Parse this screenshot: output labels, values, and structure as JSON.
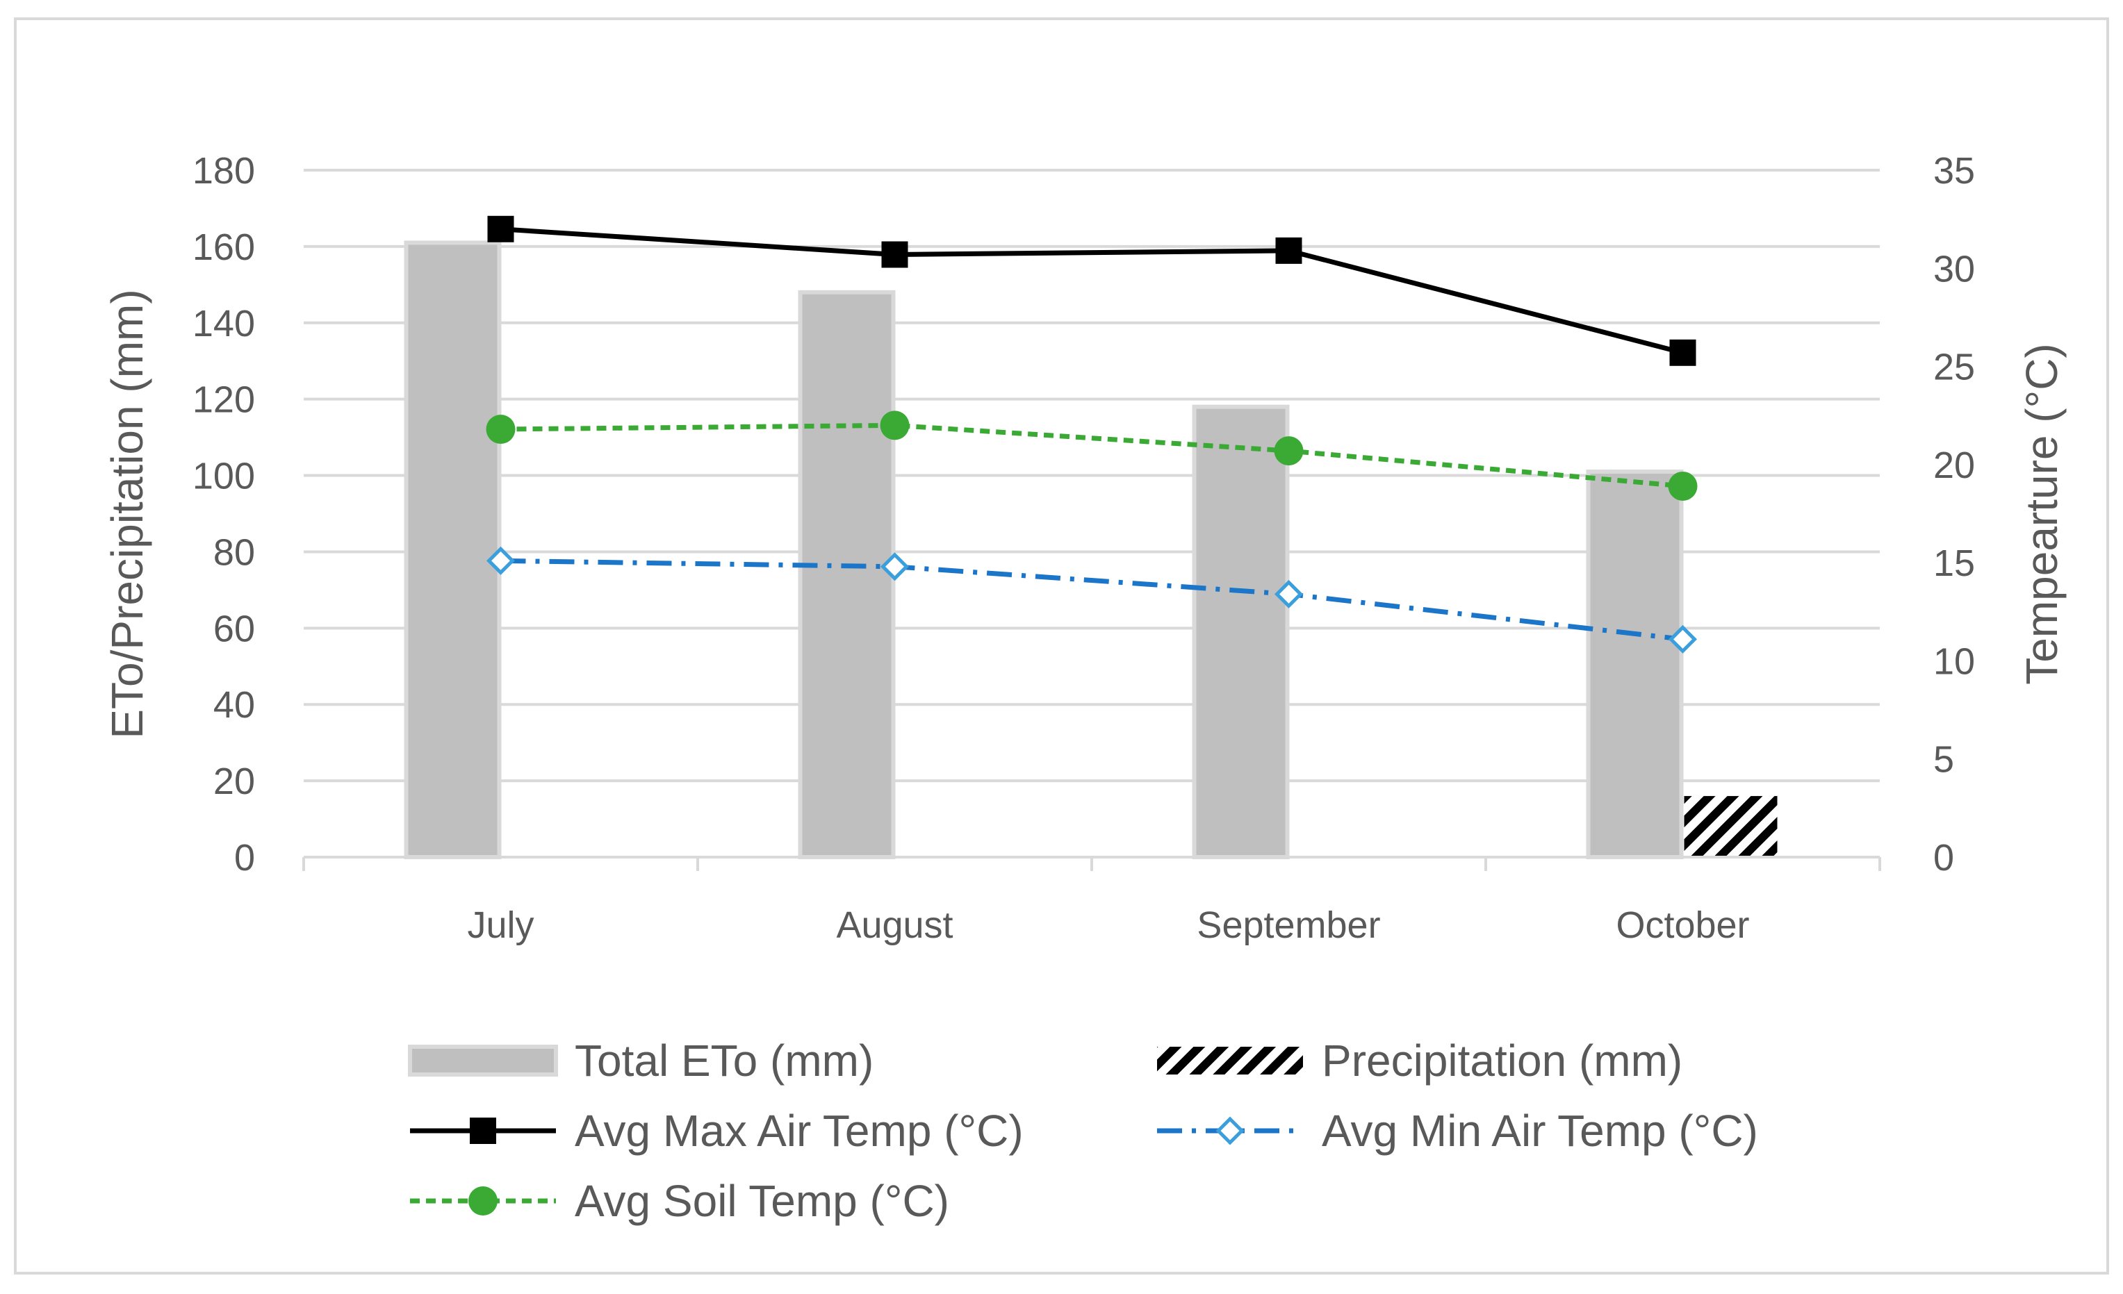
{
  "chart_data": {
    "type": "bar",
    "categories": [
      "July",
      "August",
      "September",
      "October"
    ],
    "primary_axis": {
      "label": "ETo/Precipitation (mm)",
      "ylim": [
        0,
        180
      ],
      "ticks": [
        0,
        20,
        40,
        60,
        80,
        100,
        120,
        140,
        160,
        180
      ]
    },
    "secondary_axis": {
      "label": "Tempearture (°C)",
      "ylim": [
        0,
        35
      ],
      "ticks": [
        0,
        5,
        10,
        15,
        20,
        25,
        30,
        35
      ]
    },
    "grid": true,
    "legend_position": "bottom",
    "series": [
      {
        "key": "eto",
        "name": "Total ETo (mm)",
        "type": "bar",
        "axis": "primary",
        "color": "#bfbfbf",
        "values": [
          161,
          148,
          118,
          101
        ]
      },
      {
        "key": "precip",
        "name": "Precipitation (mm)",
        "type": "bar",
        "axis": "primary",
        "pattern": "diagonal-stripes",
        "color": "#000000",
        "values": [
          0,
          0,
          0,
          16
        ]
      },
      {
        "key": "max",
        "name": "Avg Max Air Temp (°C)",
        "type": "line",
        "axis": "secondary",
        "color": "#000000",
        "marker": "square",
        "line_style": "solid",
        "values": [
          32.0,
          30.7,
          30.9,
          25.7
        ]
      },
      {
        "key": "min",
        "name": "Avg Min Air Temp (°C)",
        "type": "line",
        "axis": "secondary",
        "color": "#1b75c8",
        "marker": "diamond-open",
        "line_style": "dash-dot",
        "values": [
          15.1,
          14.8,
          13.4,
          11.1
        ]
      },
      {
        "key": "soil",
        "name": "Avg Soil Temp (°C)",
        "type": "line",
        "axis": "secondary",
        "color": "#3aaa35",
        "marker": "circle",
        "line_style": "dashed",
        "values": [
          21.8,
          22.0,
          20.7,
          18.9
        ]
      }
    ]
  }
}
